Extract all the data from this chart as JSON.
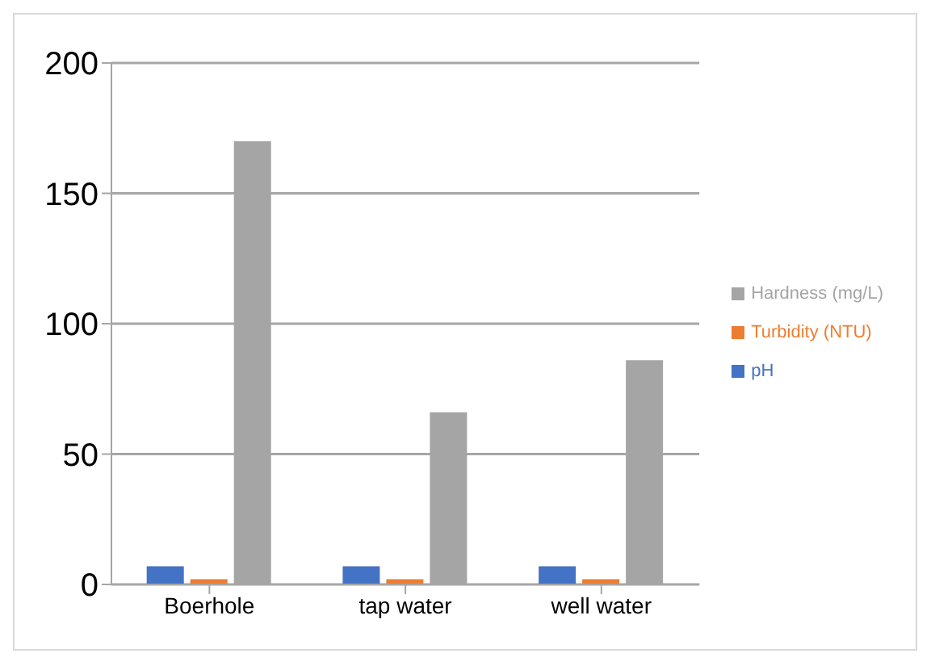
{
  "chart_data": {
    "type": "bar",
    "categories": [
      "Boerhole",
      "tap water",
      "well water"
    ],
    "series": [
      {
        "name": "pH",
        "color": "#4472c4",
        "values": [
          7,
          7,
          7
        ]
      },
      {
        "name": "Turbidity (NTU)",
        "color": "#ed7d31",
        "values": [
          2,
          2,
          2
        ]
      },
      {
        "name": "Hardness (mg/L)",
        "color": "#a5a5a5",
        "values": [
          170,
          66,
          86
        ]
      }
    ],
    "ylim": [
      0,
      200
    ],
    "yticks": [
      0,
      50,
      100,
      150,
      200
    ],
    "grid": "y",
    "legend": "right"
  }
}
